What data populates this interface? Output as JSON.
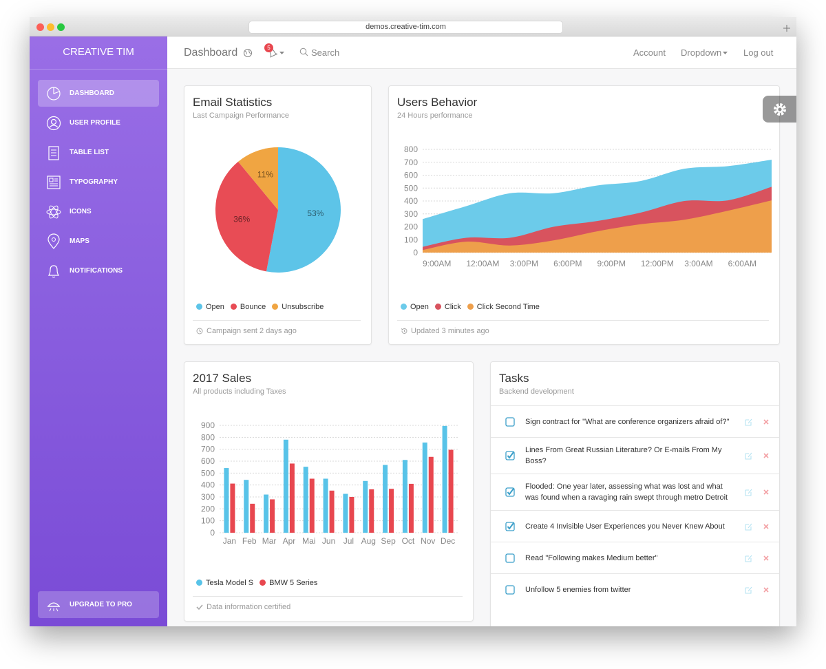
{
  "browser": {
    "url": "demos.creative-tim.com"
  },
  "sidebar": {
    "brand": "CREATIVE TIM",
    "items": [
      "DASHBOARD",
      "USER PROFILE",
      "TABLE LIST",
      "TYPOGRAPHY",
      "ICONS",
      "MAPS",
      "NOTIFICATIONS"
    ],
    "upgrade": "UPGRADE TO PRO"
  },
  "navbar": {
    "title": "Dashboard",
    "notifications": 5,
    "search": "Search",
    "links": [
      "Account",
      "Dropdown",
      "Log out"
    ]
  },
  "chart_data": [
    {
      "type": "pie",
      "title": "Email Statistics",
      "subtitle": "Last Campaign Performance",
      "categories": [
        "Open",
        "Bounce",
        "Unsubscribe"
      ],
      "values": [
        53,
        36,
        11
      ],
      "value_labels": [
        "53%",
        "36%",
        "11%"
      ],
      "colors": [
        "#5dc4e8",
        "#e84c55",
        "#f0a542"
      ],
      "footer": "Campaign sent 2 days ago"
    },
    {
      "type": "area",
      "title": "Users Behavior",
      "subtitle": "24 Hours performance",
      "categories": [
        "9:00AM",
        "12:00AM",
        "3:00PM",
        "6:00PM",
        "9:00PM",
        "12:00PM",
        "3:00AM",
        "6:00AM",
        null
      ],
      "series": [
        {
          "name": "Open",
          "color": "#6ccbea",
          "values": [
            260,
            360,
            460,
            460,
            520,
            555,
            650,
            670,
            720
          ]
        },
        {
          "name": "Click",
          "color": "#d8535e",
          "values": [
            45,
            115,
            115,
            200,
            245,
            310,
            400,
            405,
            510
          ]
        },
        {
          "name": "Click Second Time",
          "color": "#ee9f4b",
          "values": [
            20,
            85,
            55,
            95,
            165,
            220,
            255,
            325,
            405
          ]
        }
      ],
      "ylim": [
        0,
        800
      ],
      "yticks": [
        0,
        100,
        200,
        300,
        400,
        500,
        600,
        700,
        800
      ],
      "grid": true,
      "footer": "Updated 3 minutes ago"
    },
    {
      "type": "bar",
      "title": "2017 Sales",
      "subtitle": "All products including Taxes",
      "categories": [
        "Jan",
        "Feb",
        "Mar",
        "Apr",
        "Mai",
        "Jun",
        "Jul",
        "Aug",
        "Sep",
        "Oct",
        "Nov",
        "Dec"
      ],
      "series": [
        {
          "name": "Tesla Model S",
          "color": "#58c3e8",
          "values": [
            542,
            443,
            320,
            780,
            553,
            453,
            326,
            434,
            568,
            610,
            756,
            895
          ]
        },
        {
          "name": "BMW 5 Series",
          "color": "#e8474f",
          "values": [
            412,
            243,
            280,
            580,
            453,
            353,
            300,
            364,
            368,
            410,
            636,
            695
          ]
        }
      ],
      "ylim": [
        0,
        900
      ],
      "yticks": [
        0,
        100,
        200,
        300,
        400,
        500,
        600,
        700,
        800,
        900
      ],
      "grid": true,
      "footer": "Data information certified"
    }
  ],
  "tasks": {
    "title": "Tasks",
    "subtitle": "Backend development",
    "items": [
      {
        "text": "Sign contract for \"What are conference organizers afraid of?\"",
        "checked": false
      },
      {
        "text": "Lines From Great Russian Literature? Or E-mails From My Boss?",
        "checked": true
      },
      {
        "text": "Flooded: One year later, assessing what was lost and what was found when a ravaging rain swept through metro Detroit",
        "checked": true
      },
      {
        "text": "Create 4 Invisible User Experiences you Never Knew About",
        "checked": true
      },
      {
        "text": "Read \"Following makes Medium better\"",
        "checked": false
      },
      {
        "text": "Unfollow 5 enemies from twitter",
        "checked": false
      }
    ]
  }
}
